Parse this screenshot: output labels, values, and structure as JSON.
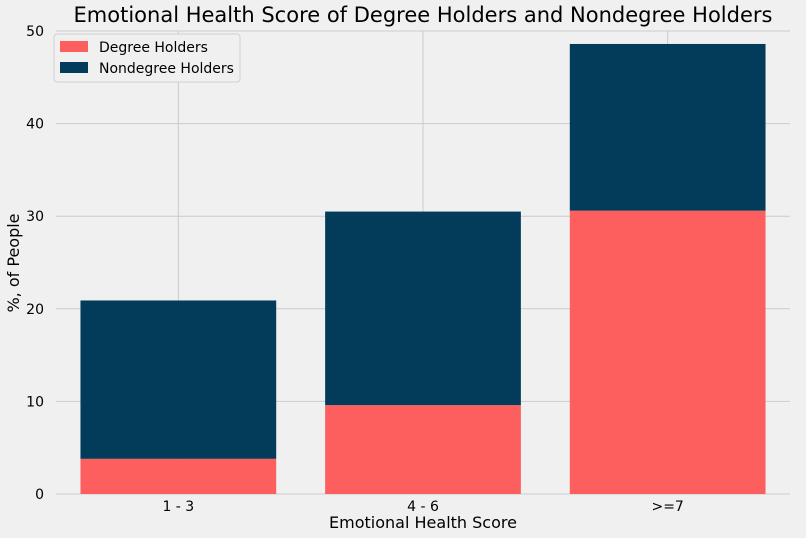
{
  "chart_data": {
    "type": "bar",
    "stacked": true,
    "title": "Emotional Health Score of Degree Holders and Nondegree Holders",
    "xlabel": "Emotional Health Score",
    "ylabel": "%, of People",
    "categories": [
      "1 - 3",
      "4 - 6",
      ">=7"
    ],
    "series": [
      {
        "name": "Degree Holders",
        "color": "#fc5f5e",
        "values": [
          3.8,
          9.6,
          30.6
        ]
      },
      {
        "name": "Nondegree Holders",
        "color": "#023c5a",
        "values": [
          17.1,
          20.9,
          18.0
        ]
      }
    ],
    "ylim": [
      0,
      50
    ],
    "yticks": [
      0,
      10,
      20,
      30,
      40,
      50
    ],
    "grid": true,
    "legend_position": "top-left",
    "background_color": "#f0f0f0",
    "grid_color": "#cbcbcb"
  }
}
